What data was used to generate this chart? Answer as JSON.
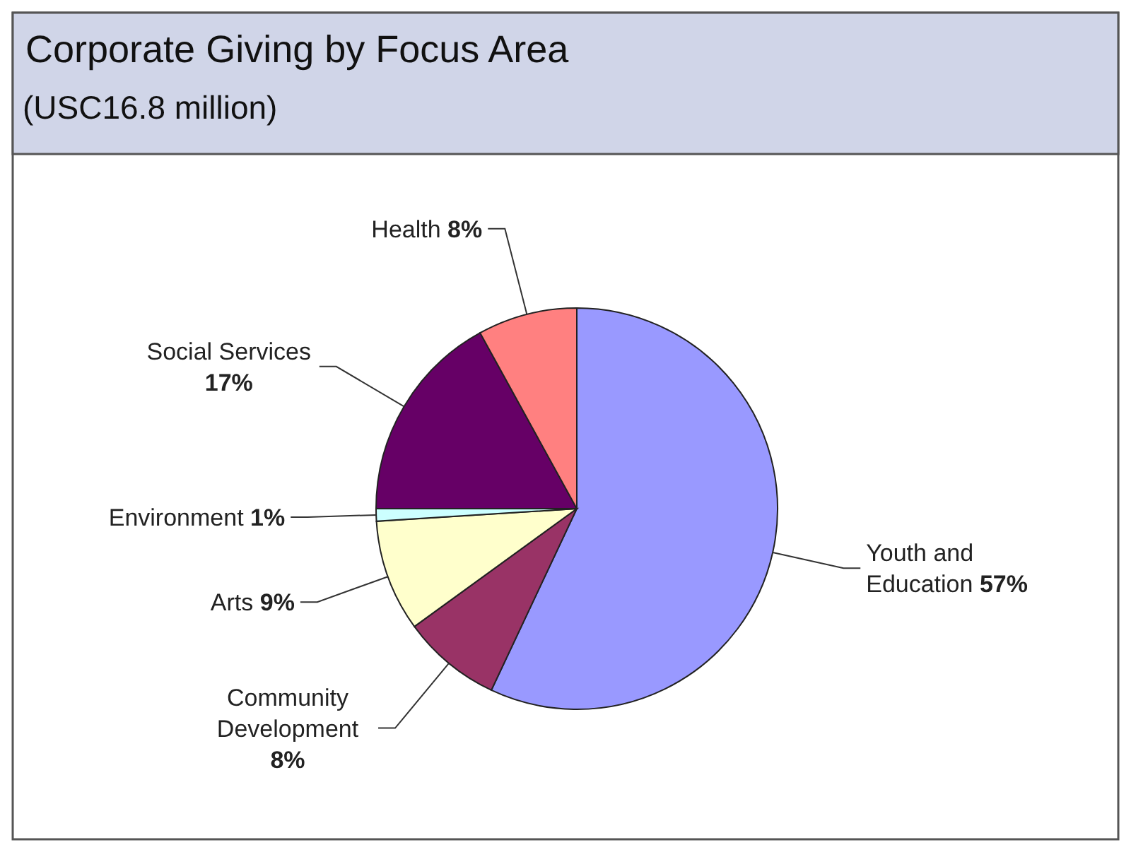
{
  "chart_data": {
    "type": "pie",
    "title": "Corporate Giving by Focus Area",
    "subtitle": "(USC16.8 million)",
    "categories": [
      "Youth and Education",
      "Community Development",
      "Arts",
      "Environment",
      "Social Services",
      "Health"
    ],
    "values": [
      57,
      8,
      9,
      1,
      17,
      8
    ],
    "value_labels": [
      "57%",
      "8%",
      "9%",
      "1%",
      "17%",
      "8%"
    ],
    "colors": [
      "#9999ff",
      "#993366",
      "#ffffcc",
      "#ccffff",
      "#660066",
      "#ff8080"
    ]
  }
}
